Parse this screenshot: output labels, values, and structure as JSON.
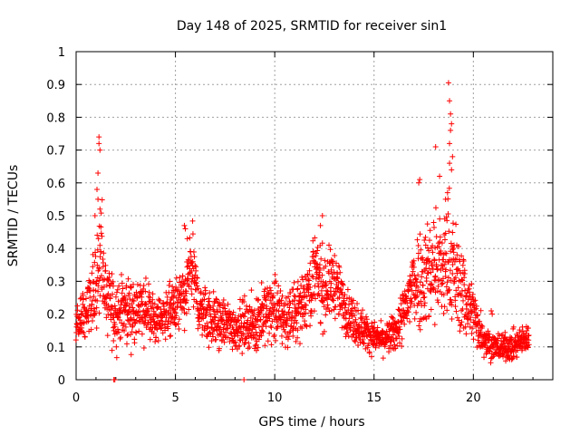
{
  "chart_data": {
    "type": "scatter",
    "title": "Day 148 of 2025, SRMTID for receiver sin1",
    "xlabel": "GPS time / hours",
    "ylabel": "SRMTID / TECUs",
    "xlim": [
      0,
      24
    ],
    "ylim": [
      0,
      1
    ],
    "x_ticks": [
      0,
      5,
      10,
      15,
      20
    ],
    "y_ticks": [
      0,
      0.1,
      0.2,
      0.3,
      0.4,
      0.5,
      0.6,
      0.7,
      0.8,
      0.9,
      1
    ],
    "x_tick_labels": [
      "0",
      "5",
      "10",
      "15",
      "20"
    ],
    "y_tick_labels": [
      "0",
      "0.1",
      "0.2",
      "0.3",
      "0.4",
      "0.5",
      "0.6",
      "0.7",
      "0.8",
      "0.9",
      "1"
    ],
    "grid": true,
    "marker": "+",
    "color": "#ff0000",
    "x_range_observed": [
      0.0,
      22.8
    ],
    "activity_profile": {
      "hours": [
        0,
        0.5,
        1,
        1.2,
        1.5,
        2,
        2.5,
        3,
        3.5,
        4,
        4.5,
        5,
        5.5,
        5.8,
        6.2,
        7,
        7.5,
        8,
        8.5,
        9,
        9.5,
        10,
        10.5,
        11,
        11.5,
        12,
        12.5,
        13,
        13.5,
        14,
        14.5,
        15,
        15.5,
        16,
        16.5,
        17,
        17.5,
        18,
        18.5,
        18.8,
        19.2,
        19.6,
        20,
        20.5,
        21,
        21.5,
        22,
        22.5,
        22.8
      ],
      "median": [
        0.17,
        0.2,
        0.3,
        0.4,
        0.25,
        0.2,
        0.22,
        0.2,
        0.22,
        0.18,
        0.2,
        0.22,
        0.25,
        0.35,
        0.22,
        0.18,
        0.17,
        0.16,
        0.17,
        0.17,
        0.2,
        0.22,
        0.18,
        0.2,
        0.25,
        0.32,
        0.28,
        0.3,
        0.22,
        0.18,
        0.15,
        0.13,
        0.12,
        0.14,
        0.2,
        0.3,
        0.32,
        0.35,
        0.33,
        0.38,
        0.3,
        0.25,
        0.2,
        0.13,
        0.1,
        0.1,
        0.1,
        0.12,
        0.13
      ],
      "spread": [
        0.04,
        0.05,
        0.1,
        0.12,
        0.08,
        0.07,
        0.07,
        0.06,
        0.07,
        0.05,
        0.05,
        0.06,
        0.07,
        0.08,
        0.06,
        0.06,
        0.05,
        0.05,
        0.05,
        0.06,
        0.07,
        0.07,
        0.06,
        0.06,
        0.07,
        0.09,
        0.08,
        0.07,
        0.05,
        0.05,
        0.04,
        0.03,
        0.03,
        0.04,
        0.06,
        0.1,
        0.11,
        0.13,
        0.12,
        0.14,
        0.1,
        0.09,
        0.06,
        0.04,
        0.03,
        0.03,
        0.03,
        0.03,
        0.03
      ],
      "points_per_hour": 100,
      "seed": 148
    },
    "notable_points": [
      {
        "x": 1.15,
        "y": 0.74
      },
      {
        "x": 1.15,
        "y": 0.72
      },
      {
        "x": 1.2,
        "y": 0.7
      },
      {
        "x": 1.1,
        "y": 0.63
      },
      {
        "x": 1.05,
        "y": 0.58
      },
      {
        "x": 1.1,
        "y": 0.55
      },
      {
        "x": 0.95,
        "y": 0.5
      },
      {
        "x": 1.2,
        "y": 0.52
      },
      {
        "x": 5.45,
        "y": 0.47
      },
      {
        "x": 5.5,
        "y": 0.46
      },
      {
        "x": 5.6,
        "y": 0.43
      },
      {
        "x": 12.4,
        "y": 0.5
      },
      {
        "x": 12.3,
        "y": 0.47
      },
      {
        "x": 17.25,
        "y": 0.6
      },
      {
        "x": 17.3,
        "y": 0.61
      },
      {
        "x": 18.1,
        "y": 0.71
      },
      {
        "x": 18.3,
        "y": 0.62
      },
      {
        "x": 18.75,
        "y": 0.905
      },
      {
        "x": 18.8,
        "y": 0.85
      },
      {
        "x": 18.85,
        "y": 0.81
      },
      {
        "x": 18.9,
        "y": 0.78
      },
      {
        "x": 18.85,
        "y": 0.76
      },
      {
        "x": 18.8,
        "y": 0.72
      },
      {
        "x": 18.95,
        "y": 0.68
      },
      {
        "x": 18.8,
        "y": 0.66
      },
      {
        "x": 18.9,
        "y": 0.64
      },
      {
        "x": 18.7,
        "y": 0.57
      },
      {
        "x": 18.6,
        "y": 0.55
      },
      {
        "x": 20.9,
        "y": 0.21
      },
      {
        "x": 20.95,
        "y": 0.2
      },
      {
        "x": 1.9,
        "y": 0.0
      },
      {
        "x": 1.95,
        "y": 0.0
      },
      {
        "x": 8.45,
        "y": 0.0
      }
    ]
  }
}
